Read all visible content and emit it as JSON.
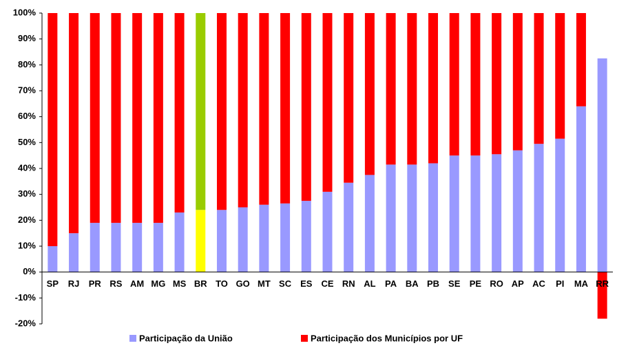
{
  "chart_data": {
    "type": "stacked_bar",
    "categories": [
      "SP",
      "RJ",
      "PR",
      "RS",
      "AM",
      "MG",
      "MS",
      "BR",
      "TO",
      "GO",
      "MT",
      "SC",
      "ES",
      "CE",
      "RN",
      "AL",
      "PA",
      "BA",
      "PB",
      "SE",
      "PE",
      "RO",
      "AP",
      "AC",
      "PI",
      "MA",
      "RR"
    ],
    "series": [
      {
        "name": "Participação da União",
        "color": "#9999ff",
        "highlight_color": "#ffff00",
        "values": [
          10,
          15,
          19,
          19,
          19,
          19,
          23,
          24,
          24,
          25,
          26,
          26.5,
          27.5,
          31,
          34.5,
          37.5,
          41.5,
          41.5,
          42,
          45,
          45,
          45.5,
          47,
          49.5,
          51.5,
          64,
          82.5
        ]
      },
      {
        "name": "Participação dos Municípios por UF",
        "color": "#ff0000",
        "highlight_color": "#99cc00",
        "values": [
          90,
          85,
          81,
          81,
          81,
          81,
          77,
          76,
          76,
          75,
          74,
          73.5,
          72.5,
          69,
          65.5,
          62.5,
          58.5,
          58.5,
          58,
          55,
          55,
          54.5,
          53,
          50.5,
          48.5,
          36,
          -18
        ]
      }
    ],
    "highlight": "BR",
    "ylim": [
      -20,
      100
    ],
    "yticks": [
      {
        "value": -20,
        "label": "-20%"
      },
      {
        "value": -10,
        "label": "-10%"
      },
      {
        "value": 0,
        "label": "0%"
      },
      {
        "value": 10,
        "label": "10%"
      },
      {
        "value": 20,
        "label": "20%"
      },
      {
        "value": 30,
        "label": "30%"
      },
      {
        "value": 40,
        "label": "40%"
      },
      {
        "value": 50,
        "label": "50%"
      },
      {
        "value": 60,
        "label": "60%"
      },
      {
        "value": 70,
        "label": "70%"
      },
      {
        "value": 80,
        "label": "80%"
      },
      {
        "value": 90,
        "label": "90%"
      },
      {
        "value": 100,
        "label": "100%"
      }
    ],
    "legend": "bottom"
  }
}
